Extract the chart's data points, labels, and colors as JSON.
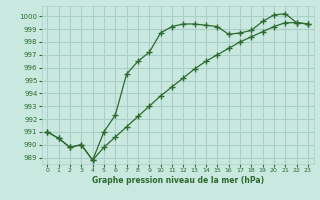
{
  "title": "Graphe pression niveau de la mer (hPa)",
  "x_series1": [
    0,
    1,
    2,
    3,
    4,
    5,
    6,
    7,
    8,
    9,
    10,
    11,
    12,
    13,
    14,
    15,
    16,
    17,
    18,
    19,
    20,
    21,
    22,
    23
  ],
  "y_series1": [
    991.0,
    990.5,
    989.8,
    990.0,
    988.8,
    991.0,
    992.3,
    995.5,
    996.5,
    997.2,
    998.7,
    999.2,
    999.4,
    999.4,
    999.3,
    999.2,
    998.6,
    998.7,
    998.9,
    999.6,
    1000.1,
    1000.2,
    999.5,
    999.4
  ],
  "x_series2": [
    0,
    1,
    2,
    3,
    4,
    5,
    6,
    7,
    8,
    9,
    10,
    11,
    12,
    13,
    14,
    15,
    16,
    17,
    18,
    19,
    20,
    21,
    22,
    23
  ],
  "y_series2": [
    991.0,
    990.5,
    989.8,
    990.0,
    988.8,
    989.8,
    990.6,
    991.4,
    992.2,
    993.0,
    993.8,
    994.5,
    995.2,
    995.9,
    996.5,
    997.0,
    997.5,
    998.0,
    998.4,
    998.8,
    999.2,
    999.5,
    999.5,
    999.4
  ],
  "line_color": "#2d6a2d",
  "bg_color": "#c8e8e0",
  "grid_color": "#aacfc8",
  "ylim": [
    988.5,
    1000.8
  ],
  "yticks": [
    989,
    990,
    991,
    992,
    993,
    994,
    995,
    996,
    997,
    998,
    999,
    1000
  ],
  "xlim": [
    -0.5,
    23.5
  ],
  "xticks": [
    0,
    1,
    2,
    3,
    4,
    5,
    6,
    7,
    8,
    9,
    10,
    11,
    12,
    13,
    14,
    15,
    16,
    17,
    18,
    19,
    20,
    21,
    22,
    23
  ]
}
